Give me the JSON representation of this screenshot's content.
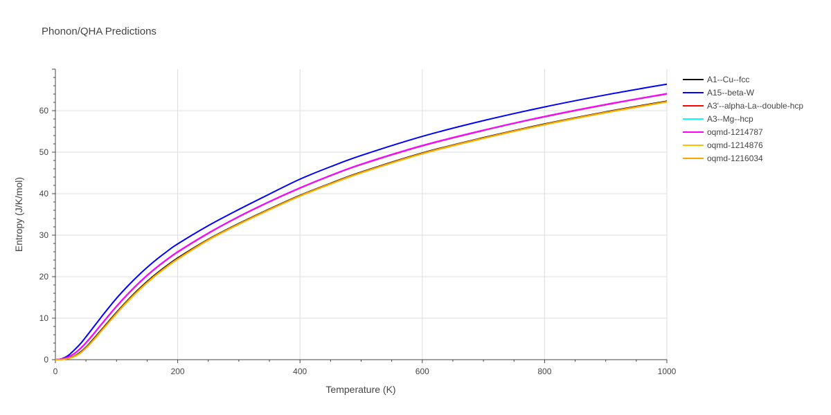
{
  "chart_data": {
    "type": "line",
    "title": "Phonon/QHA Predictions",
    "xlabel": "Temperature (K)",
    "ylabel": "Entropy (J/K/mol)",
    "xlim": [
      0,
      1000
    ],
    "ylim": [
      0,
      70
    ],
    "xticks": [
      0,
      200,
      400,
      600,
      800,
      1000
    ],
    "yticks": [
      0,
      10,
      20,
      30,
      40,
      50,
      60
    ],
    "grid": true,
    "legend_position": "top-right",
    "x": [
      0,
      10,
      20,
      30,
      40,
      50,
      60,
      70,
      80,
      100,
      120,
      140,
      160,
      180,
      200,
      250,
      300,
      350,
      400,
      450,
      500,
      600,
      700,
      800,
      900,
      1000
    ],
    "series": [
      {
        "name": "A1--Cu--fcc",
        "color": "#000000",
        "values": [
          0,
          0.05,
          0.3,
          0.8,
          1.7,
          3.0,
          4.6,
          6.3,
          8.0,
          11.4,
          14.6,
          17.5,
          20.1,
          22.4,
          24.5,
          29.0,
          32.8,
          36.3,
          39.6,
          42.5,
          45.2,
          49.8,
          53.5,
          56.8,
          59.7,
          62.3
        ]
      },
      {
        "name": "A15--beta-W",
        "color": "#0000ff",
        "values": [
          0,
          0.2,
          0.9,
          2.2,
          3.7,
          5.5,
          7.4,
          9.3,
          11.2,
          14.8,
          18.0,
          20.9,
          23.5,
          25.8,
          27.9,
          32.3,
          36.2,
          39.9,
          43.5,
          46.5,
          49.2,
          53.8,
          57.6,
          60.9,
          63.8,
          66.4
        ]
      },
      {
        "name": "A3'--alpha-La--double-hcp",
        "color": "#ff0000",
        "values": [
          0,
          0.1,
          0.5,
          1.3,
          2.5,
          4.0,
          5.7,
          7.5,
          9.3,
          12.8,
          16.0,
          18.9,
          21.5,
          23.8,
          25.9,
          30.4,
          34.4,
          38.0,
          41.3,
          44.3,
          47.0,
          51.5,
          55.2,
          58.5,
          61.4,
          64.0
        ]
      },
      {
        "name": "A3--Mg--hcp",
        "color": "#00ffff",
        "values": [
          0,
          0.1,
          0.55,
          1.35,
          2.55,
          4.05,
          5.75,
          7.55,
          9.35,
          12.85,
          16.05,
          18.95,
          21.55,
          23.85,
          25.95,
          30.45,
          34.45,
          38.05,
          41.35,
          44.35,
          47.05,
          51.55,
          55.25,
          58.55,
          61.45,
          64.05
        ]
      },
      {
        "name": "oqmd-1214787",
        "color": "#ff00ff",
        "values": [
          0,
          0.12,
          0.6,
          1.4,
          2.6,
          4.1,
          5.8,
          7.6,
          9.4,
          12.9,
          16.1,
          19.0,
          21.6,
          23.9,
          26.0,
          30.5,
          34.5,
          38.1,
          41.4,
          44.4,
          47.1,
          51.6,
          55.3,
          58.6,
          61.5,
          64.1
        ]
      },
      {
        "name": "oqmd-1214876",
        "color": "#ffbf00",
        "values": [
          0,
          0.03,
          0.25,
          0.7,
          1.5,
          2.8,
          4.3,
          6.0,
          7.7,
          11.1,
          14.3,
          17.2,
          19.8,
          22.1,
          24.2,
          28.8,
          32.6,
          36.1,
          39.4,
          42.3,
          45.0,
          49.6,
          53.3,
          56.6,
          59.5,
          62.1
        ]
      },
      {
        "name": "oqmd-1216034",
        "color": "#ffa500",
        "values": [
          0,
          0.03,
          0.25,
          0.75,
          1.55,
          2.85,
          4.4,
          6.1,
          7.8,
          11.2,
          14.4,
          17.3,
          19.9,
          22.2,
          24.3,
          28.9,
          32.7,
          36.2,
          39.5,
          42.4,
          45.1,
          49.7,
          53.4,
          56.7,
          59.6,
          62.2
        ]
      }
    ]
  }
}
